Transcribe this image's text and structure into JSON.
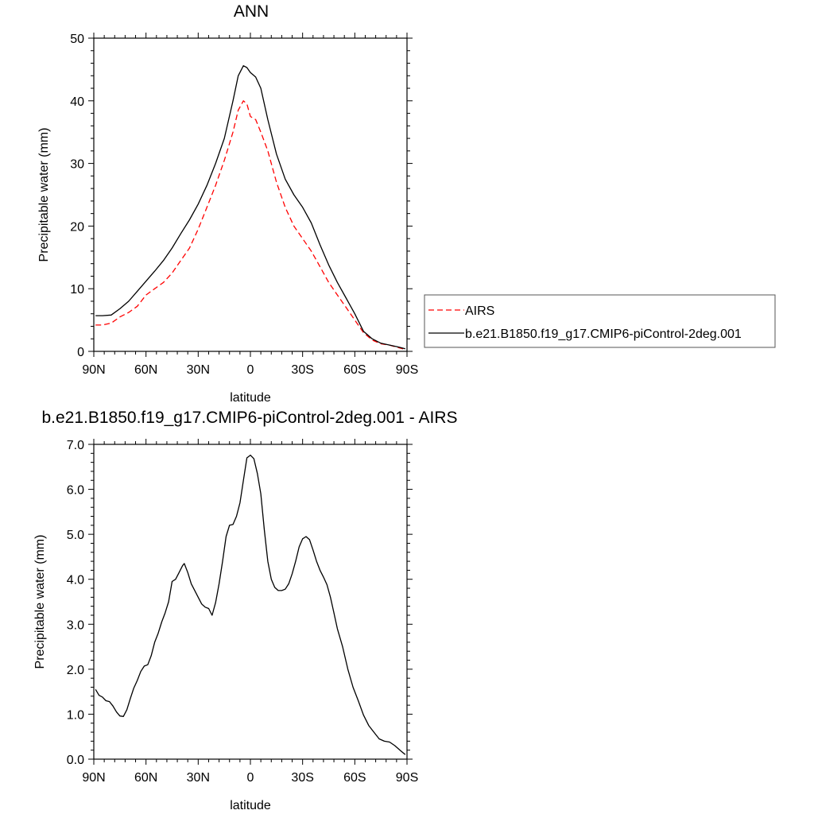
{
  "chart_data": [
    {
      "type": "line",
      "title": "ANN",
      "xlabel": "latitude",
      "ylabel": "Precipitable water (mm)",
      "xlim": [
        -90,
        90
      ],
      "ylim": [
        0,
        50
      ],
      "xticks": [
        -90,
        -60,
        -30,
        0,
        30,
        60,
        90
      ],
      "xtick_labels": [
        "90N",
        "60N",
        "30N",
        "0",
        "30S",
        "60S",
        "90S"
      ],
      "yticks": [
        0,
        10,
        20,
        30,
        40,
        50
      ],
      "ytick_labels": [
        "0",
        "10",
        "20",
        "30",
        "40",
        "50"
      ],
      "legend_position": "right",
      "grid": false,
      "series": [
        {
          "name": "AIRS",
          "color": "#ff0000",
          "dash": true,
          "points": [
            [
              -89,
              4.2
            ],
            [
              -85,
              4.2
            ],
            [
              -80,
              4.5
            ],
            [
              -75,
              5.5
            ],
            [
              -70,
              6.2
            ],
            [
              -65,
              7.2
            ],
            [
              -60,
              9
            ],
            [
              -55,
              10
            ],
            [
              -50,
              11
            ],
            [
              -45,
              12.5
            ],
            [
              -40,
              14.5
            ],
            [
              -35,
              16.5
            ],
            [
              -30,
              19.5
            ],
            [
              -25,
              23
            ],
            [
              -20,
              26.5
            ],
            [
              -15,
              30.5
            ],
            [
              -10,
              35
            ],
            [
              -7,
              38.5
            ],
            [
              -4,
              40
            ],
            [
              -2,
              39.5
            ],
            [
              0,
              37.5
            ],
            [
              3,
              37
            ],
            [
              6,
              35
            ],
            [
              10,
              32
            ],
            [
              15,
              27
            ],
            [
              20,
              23
            ],
            [
              25,
              20
            ],
            [
              30,
              18
            ],
            [
              35,
              16
            ],
            [
              40,
              13.5
            ],
            [
              45,
              11
            ],
            [
              50,
              9
            ],
            [
              55,
              7
            ],
            [
              60,
              5
            ],
            [
              65,
              3
            ],
            [
              70,
              1.8
            ],
            [
              75,
              1.2
            ],
            [
              80,
              1
            ],
            [
              85,
              0.6
            ],
            [
              89,
              0.3
            ]
          ]
        },
        {
          "name": "b.e21.B1850.f19_g17.CMIP6-piControl-2deg.001",
          "color": "#000000",
          "dash": false,
          "points": [
            [
              -89,
              5.7
            ],
            [
              -85,
              5.7
            ],
            [
              -80,
              5.8
            ],
            [
              -75,
              6.8
            ],
            [
              -70,
              8
            ],
            [
              -65,
              9.6
            ],
            [
              -60,
              11.2
            ],
            [
              -55,
              12.8
            ],
            [
              -50,
              14.5
            ],
            [
              -45,
              16.5
            ],
            [
              -40,
              18.8
            ],
            [
              -35,
              21
            ],
            [
              -30,
              23.5
            ],
            [
              -25,
              26.5
            ],
            [
              -20,
              30
            ],
            [
              -15,
              34
            ],
            [
              -10,
              40
            ],
            [
              -7,
              44
            ],
            [
              -4,
              45.6
            ],
            [
              -2,
              45.3
            ],
            [
              0,
              44.5
            ],
            [
              3,
              43.8
            ],
            [
              6,
              42
            ],
            [
              10,
              37
            ],
            [
              15,
              31.5
            ],
            [
              20,
              27.5
            ],
            [
              25,
              25
            ],
            [
              30,
              23
            ],
            [
              35,
              20.5
            ],
            [
              40,
              17
            ],
            [
              45,
              13.8
            ],
            [
              50,
              11
            ],
            [
              55,
              8.5
            ],
            [
              60,
              6
            ],
            [
              65,
              3.2
            ],
            [
              70,
              2
            ],
            [
              75,
              1.3
            ],
            [
              80,
              1
            ],
            [
              85,
              0.7
            ],
            [
              89,
              0.4
            ]
          ]
        }
      ]
    },
    {
      "type": "line",
      "title": "b.e21.B1850.f19_g17.CMIP6-piControl-2deg.001 - AIRS",
      "xlabel": "latitude",
      "ylabel": "Precipitable water (mm)",
      "xlim": [
        -90,
        90
      ],
      "ylim": [
        0,
        7
      ],
      "xticks": [
        -90,
        -60,
        -30,
        0,
        30,
        60,
        90
      ],
      "xtick_labels": [
        "90N",
        "60N",
        "30N",
        "0",
        "30S",
        "60S",
        "90S"
      ],
      "yticks": [
        0,
        1,
        2,
        3,
        4,
        5,
        6,
        7
      ],
      "ytick_labels": [
        "0.0",
        "1.0",
        "2.0",
        "3.0",
        "4.0",
        "5.0",
        "6.0",
        "7.0"
      ],
      "grid": false,
      "series": [
        {
          "color": "#000000",
          "dash": false,
          "points": [
            [
              -89,
              1.55
            ],
            [
              -87,
              1.42
            ],
            [
              -85,
              1.38
            ],
            [
              -83,
              1.3
            ],
            [
              -81,
              1.28
            ],
            [
              -79,
              1.18
            ],
            [
              -77,
              1.05
            ],
            [
              -75,
              0.96
            ],
            [
              -73,
              0.95
            ],
            [
              -71,
              1.1
            ],
            [
              -69,
              1.35
            ],
            [
              -67,
              1.58
            ],
            [
              -65,
              1.75
            ],
            [
              -63,
              1.95
            ],
            [
              -61,
              2.07
            ],
            [
              -59,
              2.1
            ],
            [
              -57,
              2.3
            ],
            [
              -55,
              2.6
            ],
            [
              -53,
              2.8
            ],
            [
              -51,
              3.05
            ],
            [
              -49,
              3.25
            ],
            [
              -47,
              3.5
            ],
            [
              -45,
              3.95
            ],
            [
              -43,
              4.0
            ],
            [
              -41,
              4.15
            ],
            [
              -39,
              4.3
            ],
            [
              -38,
              4.35
            ],
            [
              -36,
              4.15
            ],
            [
              -34,
              3.9
            ],
            [
              -32,
              3.75
            ],
            [
              -30,
              3.6
            ],
            [
              -28,
              3.45
            ],
            [
              -26,
              3.38
            ],
            [
              -24,
              3.35
            ],
            [
              -22,
              3.2
            ],
            [
              -20,
              3.48
            ],
            [
              -18,
              3.9
            ],
            [
              -16,
              4.4
            ],
            [
              -14,
              4.95
            ],
            [
              -12,
              5.2
            ],
            [
              -10,
              5.22
            ],
            [
              -8,
              5.4
            ],
            [
              -6,
              5.7
            ],
            [
              -4,
              6.2
            ],
            [
              -2,
              6.7
            ],
            [
              0,
              6.76
            ],
            [
              2,
              6.68
            ],
            [
              4,
              6.35
            ],
            [
              6,
              5.9
            ],
            [
              8,
              5.1
            ],
            [
              10,
              4.4
            ],
            [
              12,
              4.0
            ],
            [
              14,
              3.82
            ],
            [
              16,
              3.75
            ],
            [
              18,
              3.75
            ],
            [
              20,
              3.78
            ],
            [
              22,
              3.9
            ],
            [
              24,
              4.12
            ],
            [
              26,
              4.4
            ],
            [
              28,
              4.72
            ],
            [
              30,
              4.9
            ],
            [
              32,
              4.95
            ],
            [
              34,
              4.88
            ],
            [
              36,
              4.65
            ],
            [
              38,
              4.4
            ],
            [
              40,
              4.2
            ],
            [
              42,
              4.05
            ],
            [
              44,
              3.88
            ],
            [
              46,
              3.6
            ],
            [
              48,
              3.25
            ],
            [
              50,
              2.9
            ],
            [
              53,
              2.5
            ],
            [
              56,
              2.0
            ],
            [
              59,
              1.6
            ],
            [
              62,
              1.3
            ],
            [
              65,
              0.98
            ],
            [
              68,
              0.75
            ],
            [
              71,
              0.6
            ],
            [
              74,
              0.45
            ],
            [
              77,
              0.4
            ],
            [
              80,
              0.38
            ],
            [
              83,
              0.3
            ],
            [
              86,
              0.2
            ],
            [
              89,
              0.1
            ]
          ]
        }
      ]
    }
  ]
}
